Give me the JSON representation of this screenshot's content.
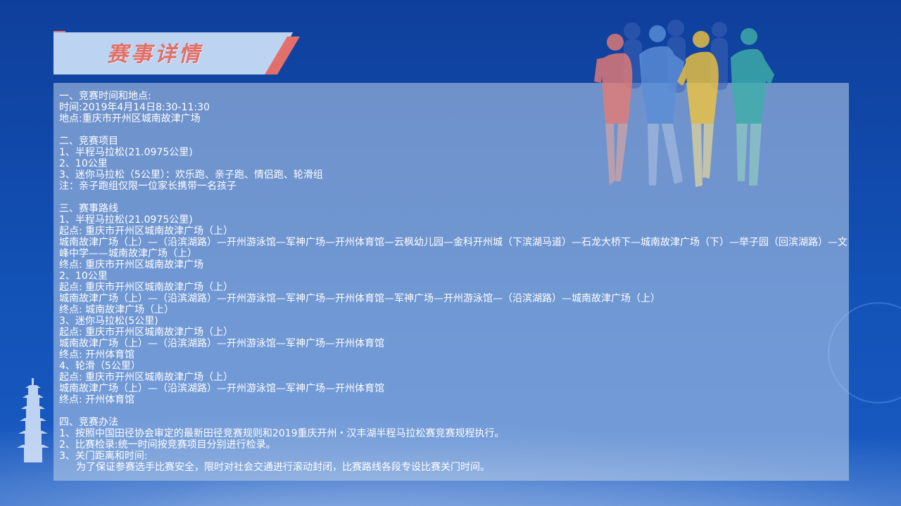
{
  "header": {
    "title": "赛事详情"
  },
  "sections": [
    {
      "heading": "一、竞赛时间和地点:",
      "lines": [
        "时间:2019年4月14日8:30-11:30",
        "地点:重庆市开州区城南故津广场"
      ]
    },
    {
      "heading": "二、竞赛项目",
      "lines": [
        "1、半程马拉松(21.0975公里)",
        "2、10公里",
        "3、迷你马拉松（5公里）：欢乐跑、亲子跑、情侣跑、轮滑组",
        "注：亲子跑组仅限一位家长携带一名孩子"
      ]
    },
    {
      "heading": "三、赛事路线",
      "lines": [
        "1、半程马拉松(21.0975公里)",
        "起点: 重庆市开州区城南故津广场（上）",
        "城南故津广场（上）—（沿滨湖路）—开州游泳馆—军神广场—开州体育馆—云枫幼儿园—金科开州城（下滨湖马道）—石龙大桥下—城南故津广场（下）—举子园（回滨湖路）—文峰中学——城南故津广场（上）",
        "终点: 重庆市开州区城南故津广场",
        "2、10公里",
        "起点: 重庆市开州区城南故津广场（上）",
        "城南故津广场（上）—（沿滨湖路）—开州游泳馆—军神广场—开州体育馆—军神广场—开州游泳馆—（沿滨湖路）—城南故津广场（上）",
        "终点: 城南故津广场（上）",
        "3、迷你马拉松(5公里)",
        "起点: 重庆市开州区城南故津广场（上）",
        "城南故津广场（上）—（沿滨湖路）—开州游泳馆—军神广场—开州体育馆",
        "终点: 开州体育馆",
        "4、轮滑（5公里）",
        "起点: 重庆市开州区城南故津广场（上）",
        "城南故津广场（上）—（沿滨湖路）—开州游泳馆—军神广场—开州体育馆",
        "终点: 开州体育馆"
      ]
    },
    {
      "heading": "四、竞赛办法",
      "lines": [
        "1、按照中国田径协会审定的最新田径竞赛规则和2019重庆开州・汉丰湖半程马拉松赛竞赛规程执行。",
        "2、比赛检录:统一时间按竞赛项目分别进行检录。",
        "3、关门距离和时间:"
      ],
      "indented": "为了保证参赛选手比赛安全，限时对社会交通进行滚动封闭，比赛路线各段专设比赛关门时间。"
    }
  ],
  "colors": {
    "background": "#1251b5",
    "title_text": "#e26f67",
    "banner_fill": "#bcd3f2",
    "banner_accent": "#e36f6a"
  },
  "icons": {
    "runners": "runners-illustration-icon",
    "pagoda": "pagoda-icon"
  }
}
